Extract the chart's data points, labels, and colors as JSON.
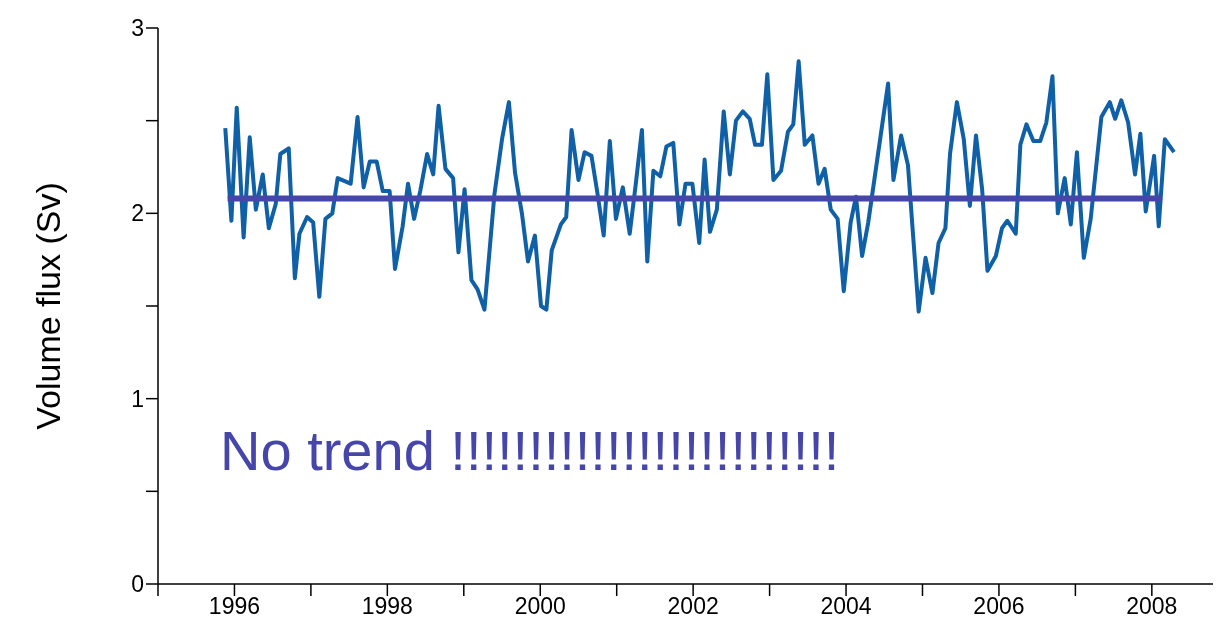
{
  "chart_data": {
    "type": "line",
    "ylabel": "Volume flux (Sv)",
    "xlim": [
      1995,
      2008.8
    ],
    "ylim": [
      0,
      3
    ],
    "xticks": [
      {
        "value": 1995,
        "label": null
      },
      {
        "value": 1996,
        "label": "1996"
      },
      {
        "value": 1997,
        "label": null
      },
      {
        "value": 1998,
        "label": "1998"
      },
      {
        "value": 1999,
        "label": null
      },
      {
        "value": 2000,
        "label": "2000"
      },
      {
        "value": 2001,
        "label": null
      },
      {
        "value": 2002,
        "label": "2002"
      },
      {
        "value": 2003,
        "label": null
      },
      {
        "value": 2004,
        "label": "2004"
      },
      {
        "value": 2005,
        "label": null
      },
      {
        "value": 2006,
        "label": "2006"
      },
      {
        "value": 2007,
        "label": null
      },
      {
        "value": 2008,
        "label": "2008"
      }
    ],
    "yticks": [
      0,
      {
        "value": 0.5,
        "label": null
      },
      1,
      {
        "value": 1.5,
        "label": null
      },
      2,
      {
        "value": 2.5,
        "label": null
      },
      3
    ],
    "grid": false,
    "legend": false,
    "marker": "none",
    "annotations": [
      "No trend !!!!!!!!!!!!!!!!!!!!!!!!!"
    ],
    "series": [
      {
        "color": "#1060a8",
        "x": [
          1995.88,
          1995.96,
          1996.03,
          1996.12,
          1996.2,
          1996.28,
          1996.37,
          1996.45,
          1996.54,
          1996.6,
          1996.71,
          1996.79,
          1996.85,
          1996.95,
          1997.03,
          1997.11,
          1997.19,
          1997.28,
          1997.35,
          1997.52,
          1997.61,
          1997.69,
          1997.77,
          1997.86,
          1997.94,
          1998.03,
          1998.1,
          1998.2,
          1998.27,
          1998.35,
          1998.43,
          1998.52,
          1998.6,
          1998.67,
          1998.76,
          1998.86,
          1998.93,
          1999.01,
          1999.1,
          1999.18,
          1999.27,
          1999.4,
          1999.5,
          1999.59,
          1999.67,
          1999.76,
          1999.84,
          1999.93,
          2000.01,
          2000.08,
          2000.15,
          2000.27,
          2000.34,
          2000.41,
          2000.5,
          2000.58,
          2000.67,
          2000.74,
          2000.83,
          2000.91,
          2000.99,
          2001.08,
          2001.17,
          2001.25,
          2001.33,
          2001.4,
          2001.48,
          2001.57,
          2001.65,
          2001.74,
          2001.82,
          2001.9,
          2001.99,
          2002.08,
          2002.15,
          2002.22,
          2002.31,
          2002.4,
          2002.48,
          2002.56,
          2002.65,
          2002.74,
          2002.81,
          2002.9,
          2002.97,
          2003.05,
          2003.15,
          2003.24,
          2003.31,
          2003.38,
          2003.46,
          2003.56,
          2003.64,
          2003.72,
          2003.8,
          2003.89,
          2003.97,
          2004.06,
          2004.13,
          2004.21,
          2004.29,
          2004.55,
          2004.62,
          2004.72,
          2004.81,
          2004.87,
          2004.95,
          2005.04,
          2005.13,
          2005.21,
          2005.3,
          2005.36,
          2005.45,
          2005.54,
          2005.62,
          2005.7,
          2005.78,
          2005.85,
          2005.96,
          2006.04,
          2006.11,
          2006.22,
          2006.28,
          2006.36,
          2006.45,
          2006.54,
          2006.62,
          2006.7,
          2006.77,
          2006.86,
          2006.94,
          2007.02,
          2007.11,
          2007.2,
          2007.34,
          2007.45,
          2007.52,
          2007.6,
          2007.69,
          2007.78,
          2007.85,
          2007.92,
          2008.03,
          2008.09,
          2008.17,
          2008.29
        ],
        "values": [
          2.46,
          1.96,
          2.57,
          1.87,
          2.41,
          2.02,
          2.21,
          1.92,
          2.05,
          2.32,
          2.35,
          1.65,
          1.89,
          1.98,
          1.95,
          1.55,
          1.97,
          2.0,
          2.19,
          2.16,
          2.52,
          2.14,
          2.28,
          2.28,
          2.12,
          2.12,
          1.7,
          1.93,
          2.16,
          1.97,
          2.12,
          2.32,
          2.21,
          2.58,
          2.24,
          2.19,
          1.79,
          2.13,
          1.64,
          1.59,
          1.48,
          2.1,
          2.4,
          2.6,
          2.22,
          2.0,
          1.74,
          1.88,
          1.5,
          1.48,
          1.8,
          1.94,
          1.98,
          2.45,
          2.18,
          2.33,
          2.31,
          2.13,
          1.88,
          2.39,
          1.97,
          2.14,
          1.89,
          2.16,
          2.45,
          1.74,
          2.23,
          2.2,
          2.36,
          2.38,
          1.94,
          2.16,
          2.16,
          1.84,
          2.29,
          1.9,
          2.02,
          2.55,
          2.21,
          2.5,
          2.55,
          2.51,
          2.37,
          2.37,
          2.75,
          2.18,
          2.23,
          2.44,
          2.48,
          2.82,
          2.37,
          2.42,
          2.16,
          2.24,
          2.02,
          1.97,
          1.58,
          1.95,
          2.09,
          1.77,
          1.95,
          2.7,
          2.18,
          2.42,
          2.26,
          1.92,
          1.47,
          1.76,
          1.57,
          1.84,
          1.92,
          2.32,
          2.6,
          2.4,
          2.04,
          2.42,
          2.13,
          1.69,
          1.77,
          1.92,
          1.96,
          1.89,
          2.37,
          2.48,
          2.39,
          2.39,
          2.49,
          2.74,
          2.0,
          2.19,
          1.94,
          2.33,
          1.76,
          1.97,
          2.52,
          2.6,
          2.51,
          2.61,
          2.49,
          2.21,
          2.43,
          2.01,
          2.31,
          1.93,
          2.4,
          2.33
        ]
      },
      {
        "color": "#4646aa",
        "x": [
          1995.91,
          2008.13
        ],
        "values": [
          2.08,
          2.08
        ]
      }
    ]
  }
}
